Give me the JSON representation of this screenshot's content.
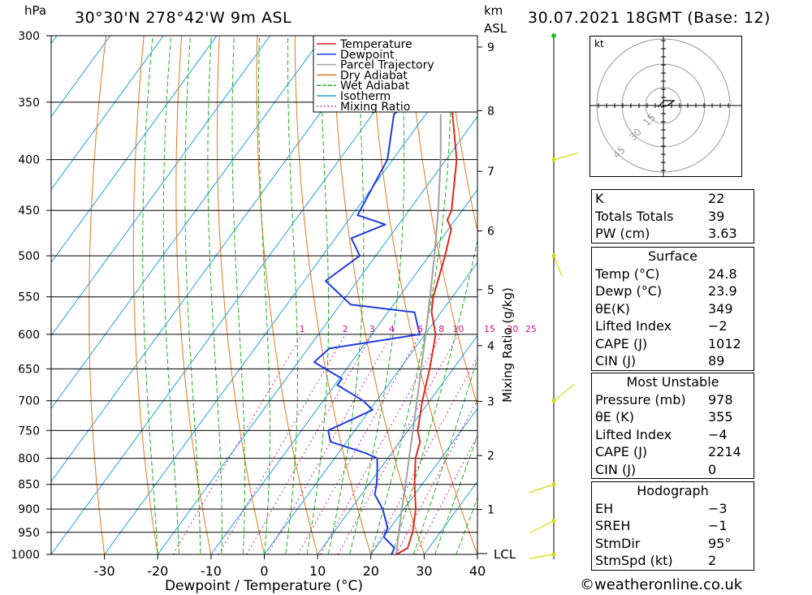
{
  "header": {
    "hpa_unit": "hPa",
    "location": "30°30'N  278°42'W  9m  ASL",
    "km_unit": "km",
    "asl_unit": "ASL",
    "datetime": "30.07.2021  18GMT  (Base: 12)"
  },
  "chart_data": {
    "type": "line",
    "subtype": "skew-t log-p sounding",
    "xlabel": "Dewpoint / Temperature (°C)",
    "ylabel_right": "Mixing Ratio (g/kg)",
    "xlim": [
      -40,
      40
    ],
    "ylim": [
      1000,
      300
    ],
    "y_scale": "log-pressure",
    "x_ticks": [
      -30,
      -20,
      -10,
      0,
      10,
      20,
      30,
      40
    ],
    "pressure_ticks": [
      300,
      350,
      400,
      450,
      500,
      550,
      600,
      650,
      700,
      750,
      800,
      850,
      900,
      950,
      1000
    ],
    "km_ticks": [
      {
        "km": "1",
        "p": 901
      },
      {
        "km": "2",
        "p": 795
      },
      {
        "km": "3",
        "p": 701
      },
      {
        "km": "4",
        "p": 616
      },
      {
        "km": "5",
        "p": 541
      },
      {
        "km": "6",
        "p": 472
      },
      {
        "km": "7",
        "p": 411
      },
      {
        "km": "8",
        "p": 357
      },
      {
        "km": "9",
        "p": 308
      }
    ],
    "lcl": {
      "label": "LCL",
      "p": 998
    },
    "mixing_ratio_labels": [
      "1",
      "2",
      "3",
      "4",
      "6",
      "8",
      "10",
      "15",
      "20",
      "25"
    ],
    "legend": [
      "Temperature",
      "Dewpoint",
      "Parcel Trajectory",
      "Dry Adiabat",
      "Wet Adiabat",
      "Isotherm",
      "Mixing Ratio"
    ],
    "legend_placement": "top-right of plot",
    "colors": {
      "temperature": "#e0281e",
      "dewpoint": "#1e3ce6",
      "parcel": "#a0a0a0",
      "dry_adiabat": "#e07820",
      "wet_adiabat": "#20b020",
      "isotherm": "#20a0e0",
      "mixing_ratio": "#c8148c",
      "wind": "#d8d800"
    },
    "temperature": [
      {
        "p": 1000,
        "t": 24.8
      },
      {
        "p": 985,
        "t": 26.0
      },
      {
        "p": 950,
        "t": 24.8
      },
      {
        "p": 900,
        "t": 22.2
      },
      {
        "p": 850,
        "t": 18.6
      },
      {
        "p": 800,
        "t": 15.2
      },
      {
        "p": 770,
        "t": 13.8
      },
      {
        "p": 750,
        "t": 11.8
      },
      {
        "p": 700,
        "t": 8.6
      },
      {
        "p": 650,
        "t": 5.6
      },
      {
        "p": 600,
        "t": 2.0
      },
      {
        "p": 570,
        "t": -1.8
      },
      {
        "p": 550,
        "t": -3.6
      },
      {
        "p": 500,
        "t": -7.0
      },
      {
        "p": 470,
        "t": -9.5
      },
      {
        "p": 460,
        "t": -11.5
      },
      {
        "p": 450,
        "t": -12.0
      },
      {
        "p": 400,
        "t": -18.0
      },
      {
        "p": 360,
        "t": -25.0
      },
      {
        "p": 350,
        "t": -27.0
      },
      {
        "p": 330,
        "t": -30.0
      },
      {
        "p": 300,
        "t": -35.5
      }
    ],
    "dewpoint": [
      {
        "p": 1000,
        "t": 23.9
      },
      {
        "p": 985,
        "t": 23.5
      },
      {
        "p": 960,
        "t": 20.0
      },
      {
        "p": 940,
        "t": 19.5
      },
      {
        "p": 900,
        "t": 16.0
      },
      {
        "p": 870,
        "t": 12.5
      },
      {
        "p": 850,
        "t": 11.5
      },
      {
        "p": 820,
        "t": 9.5
      },
      {
        "p": 800,
        "t": 8.0
      },
      {
        "p": 790,
        "t": 5.0
      },
      {
        "p": 770,
        "t": -3.0
      },
      {
        "p": 750,
        "t": -5.0
      },
      {
        "p": 715,
        "t": 0.5
      },
      {
        "p": 700,
        "t": -2.5
      },
      {
        "p": 675,
        "t": -9.5
      },
      {
        "p": 665,
        "t": -9.5
      },
      {
        "p": 640,
        "t": -17.0
      },
      {
        "p": 620,
        "t": -16.0
      },
      {
        "p": 600,
        "t": -1.0
      },
      {
        "p": 570,
        "t": -5.0
      },
      {
        "p": 560,
        "t": -18.0
      },
      {
        "p": 530,
        "t": -26.0
      },
      {
        "p": 500,
        "t": -23.0
      },
      {
        "p": 480,
        "t": -27.0
      },
      {
        "p": 465,
        "t": -22.5
      },
      {
        "p": 455,
        "t": -29.0
      },
      {
        "p": 400,
        "t": -31.0
      },
      {
        "p": 360,
        "t": -36.0
      },
      {
        "p": 350,
        "t": -35.0
      },
      {
        "p": 300,
        "t": -41.0
      }
    ],
    "parcel": [
      {
        "p": 1000,
        "t": 24.8
      },
      {
        "p": 950,
        "t": 22.2
      },
      {
        "p": 900,
        "t": 19.6
      },
      {
        "p": 850,
        "t": 16.9
      },
      {
        "p": 800,
        "t": 14.0
      },
      {
        "p": 750,
        "t": 10.9
      },
      {
        "p": 700,
        "t": 7.6
      },
      {
        "p": 650,
        "t": 4.0
      },
      {
        "p": 600,
        "t": 0.1
      },
      {
        "p": 550,
        "t": -4.2
      },
      {
        "p": 500,
        "t": -9.0
      },
      {
        "p": 450,
        "t": -14.5
      },
      {
        "p": 400,
        "t": -21.0
      },
      {
        "p": 360,
        "t": -27.2
      }
    ],
    "wind_barbs_pressure": [
      300,
      400,
      500,
      700,
      850,
      925,
      1000
    ]
  },
  "hodograph": {
    "unit": "kt",
    "ring_labels": [
      "15",
      "30",
      "45"
    ]
  },
  "indices": {
    "rows": [
      {
        "label": "K",
        "value": "22"
      },
      {
        "label": "Totals Totals",
        "value": "39"
      },
      {
        "label": "PW (cm)",
        "value": "3.63"
      }
    ]
  },
  "surface": {
    "title": "Surface",
    "rows": [
      {
        "label": "Temp (°C)",
        "value": "24.8"
      },
      {
        "label": "Dewp (°C)",
        "value": "23.9"
      },
      {
        "label": "θE(K)",
        "value": "349"
      },
      {
        "label": "Lifted Index",
        "value": "−2"
      },
      {
        "label": "CAPE (J)",
        "value": "1012"
      },
      {
        "label": "CIN (J)",
        "value": "89"
      }
    ]
  },
  "most_unstable": {
    "title": "Most Unstable",
    "rows": [
      {
        "label": "Pressure (mb)",
        "value": "978"
      },
      {
        "label": "θE (K)",
        "value": "355"
      },
      {
        "label": "Lifted Index",
        "value": "−4"
      },
      {
        "label": "CAPE (J)",
        "value": "2214"
      },
      {
        "label": "CIN (J)",
        "value": "0"
      }
    ]
  },
  "hodograph_table": {
    "title": "Hodograph",
    "rows": [
      {
        "label": "EH",
        "value": "−3"
      },
      {
        "label": "SREH",
        "value": "−1"
      },
      {
        "label": "StmDir",
        "value": "95°"
      },
      {
        "label": "StmSpd (kt)",
        "value": "2"
      }
    ]
  },
  "footer": {
    "copyright": "©weatheronline.co.uk"
  }
}
